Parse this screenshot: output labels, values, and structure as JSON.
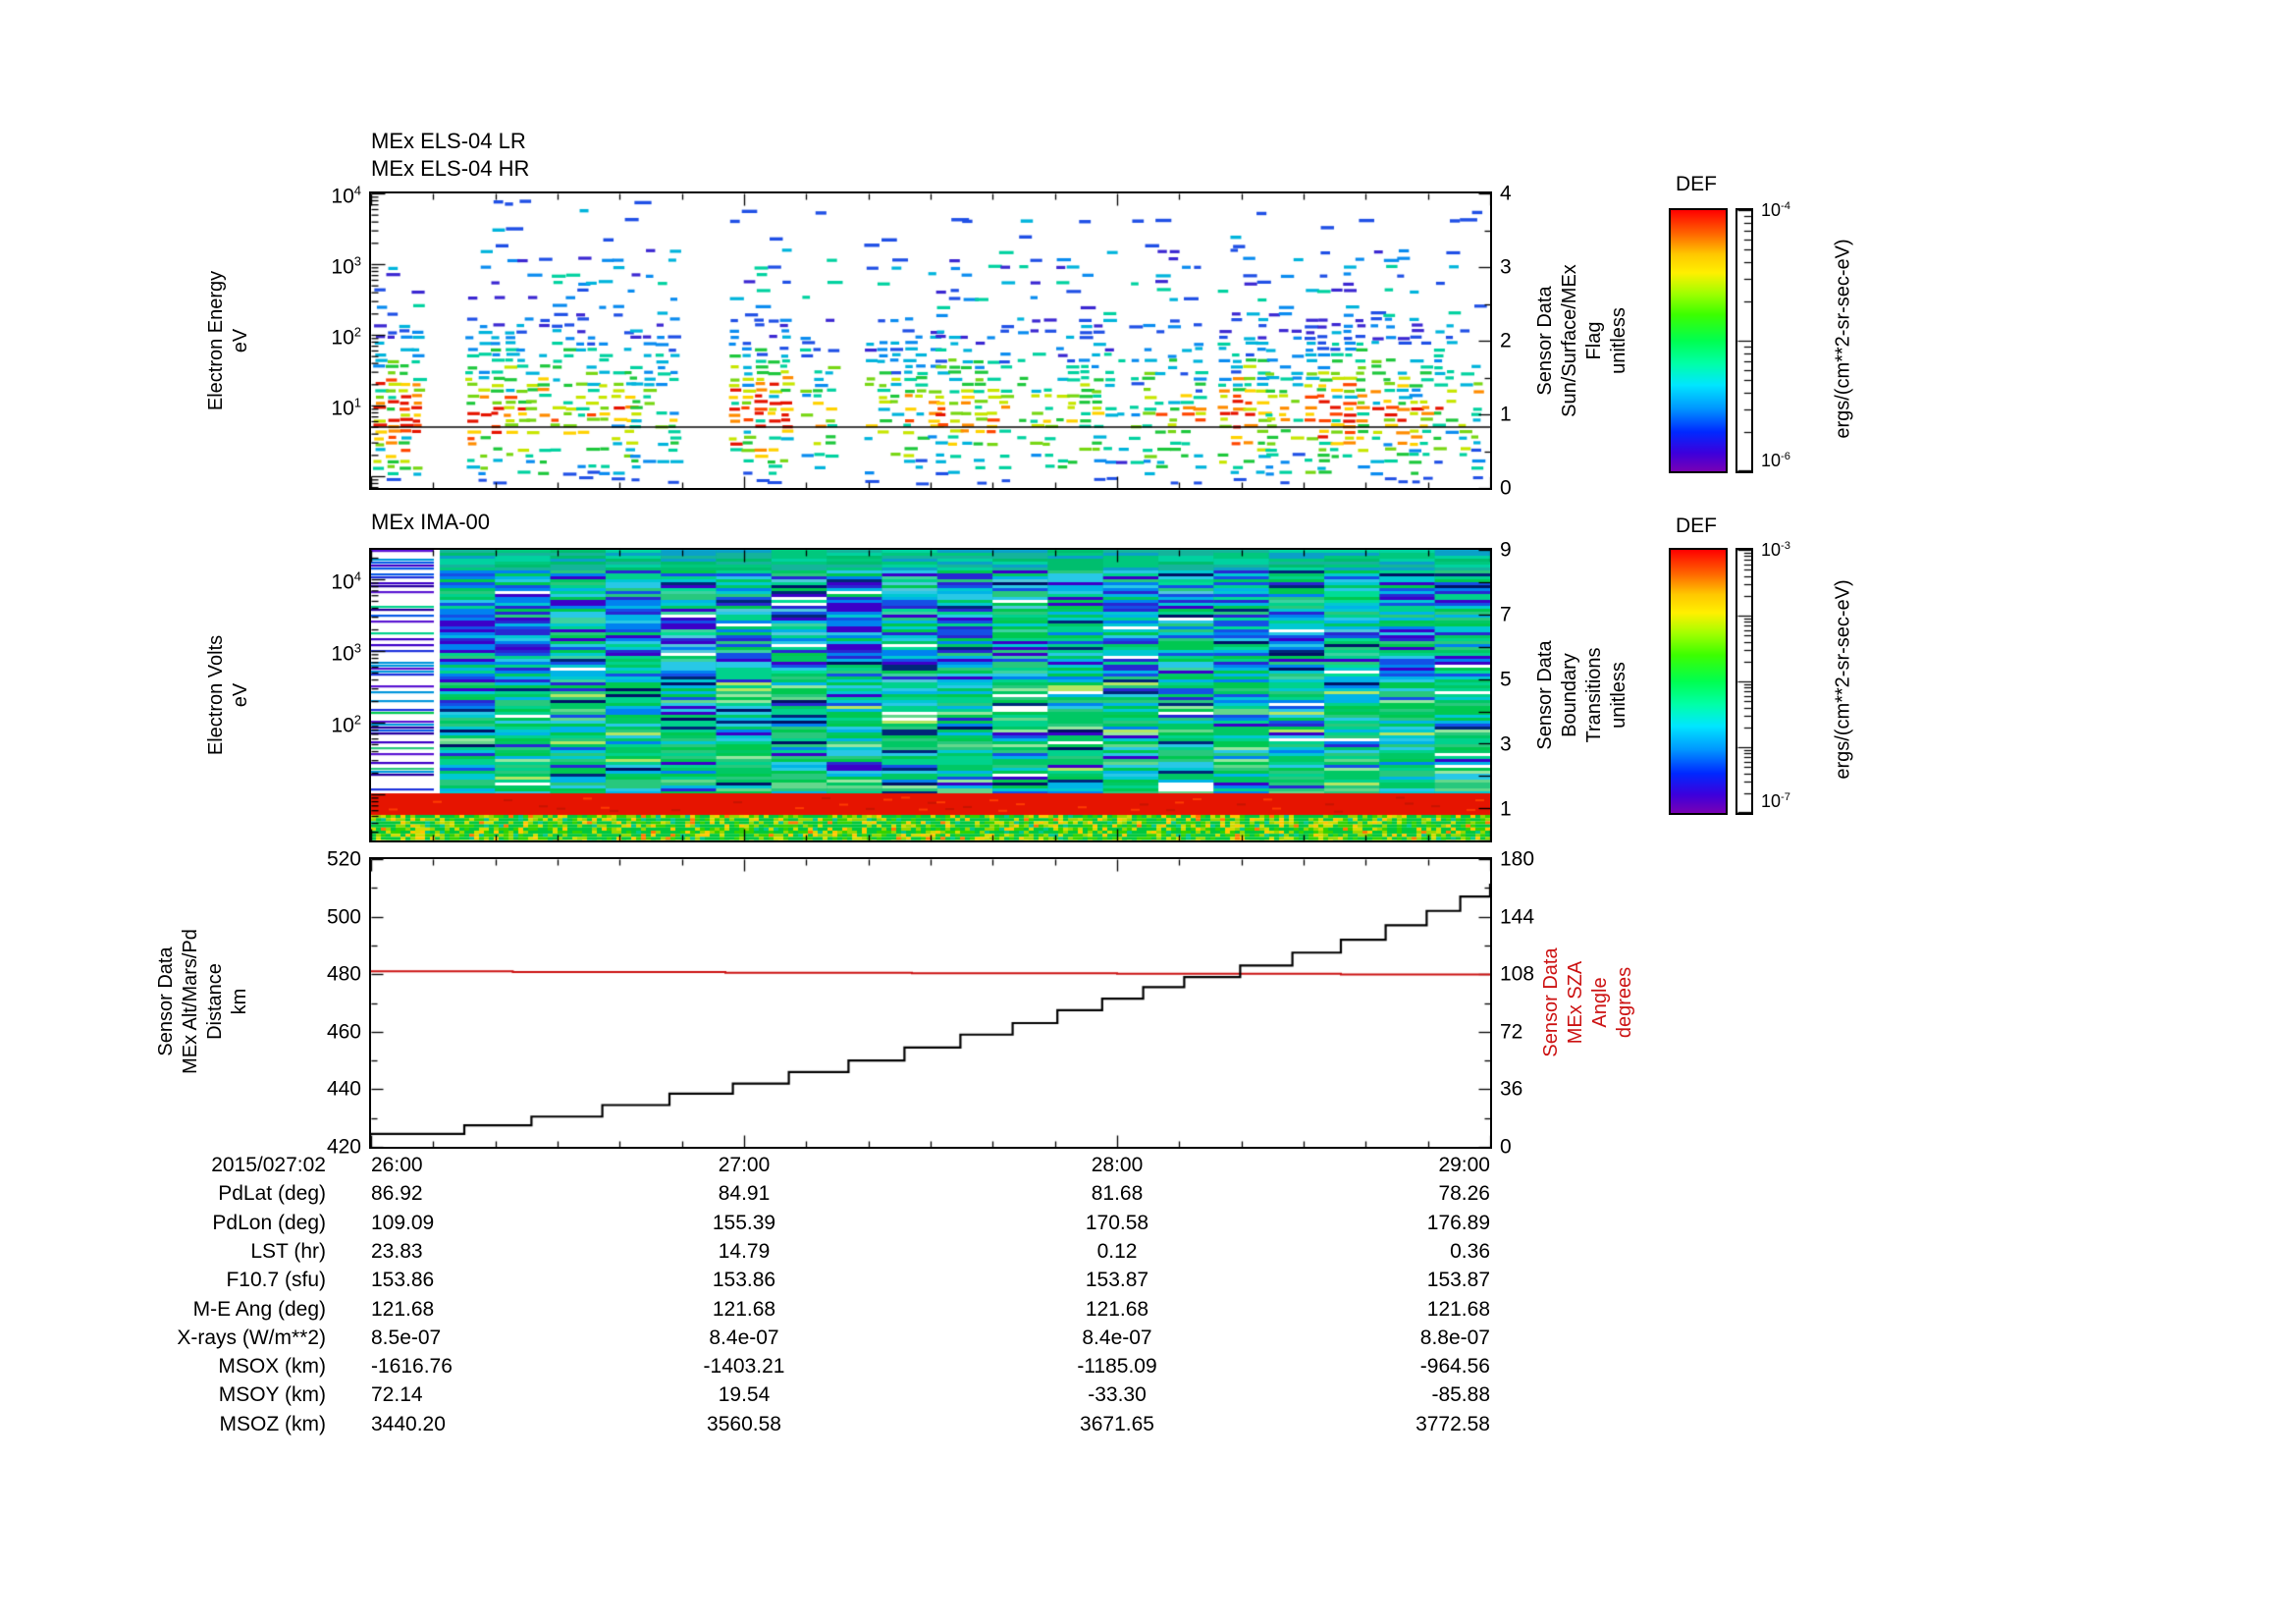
{
  "meta": {
    "background": "#ffffff",
    "foreground": "#000000",
    "accent_red": "#cc1111"
  },
  "els_panel": {
    "titles": [
      "MEx ELS-04 LR",
      "MEx ELS-04 HR"
    ],
    "y_left_title": [
      "Electron Energy",
      "eV"
    ],
    "y_left_ticks": [
      "10^4",
      "10^3",
      "10^2",
      "10^1"
    ],
    "y_right_title": [
      "Sensor Data",
      "Sun/Surface/MEx",
      "Flag",
      "unitless"
    ],
    "y_right_ticks": [
      "4",
      "3",
      "2",
      "1",
      "0"
    ]
  },
  "ima_panel": {
    "title": "MEx IMA-00",
    "y_left_title": [
      "Electron Volts",
      "eV"
    ],
    "y_left_ticks": [
      "10^4",
      "10^3",
      "10^2"
    ],
    "y_right_title": [
      "Sensor Data",
      "Boundary",
      "Transitions",
      "unitless"
    ],
    "y_right_ticks": [
      "9",
      "7",
      "5",
      "3",
      "1"
    ]
  },
  "line_panel": {
    "y_left_title": [
      "Sensor Data",
      "MEx Alt/Mars/Pd",
      "Distance",
      "km"
    ],
    "y_left_ticks": [
      "520",
      "500",
      "480",
      "460",
      "440",
      "420"
    ],
    "y_right_title": [
      "Sensor Data",
      "MEx SZA",
      "Angle",
      "degrees"
    ],
    "y_right_ticks": [
      "180",
      "144",
      "108",
      "72",
      "36",
      "0"
    ]
  },
  "x_axis": {
    "date": "2015/027:02",
    "ticks": [
      "26:00",
      "27:00",
      "28:00",
      "29:00"
    ]
  },
  "colorbars": [
    {
      "title": "DEF",
      "scale_top": "10^-4",
      "scale_bottom": "10^-6",
      "units": "ergs/(cm**2-sr-sec-eV)",
      "decades": 2
    },
    {
      "title": "DEF",
      "scale_top": "10^-3",
      "scale_bottom": "10^-7",
      "units": "ergs/(cm**2-sr-sec-eV)",
      "decades": 4
    }
  ],
  "table": {
    "rows": [
      {
        "label": "PdLat (deg)",
        "values": [
          "86.92",
          "84.91",
          "81.68",
          "78.26"
        ]
      },
      {
        "label": "PdLon (deg)",
        "values": [
          "109.09",
          "155.39",
          "170.58",
          "176.89"
        ]
      },
      {
        "label": "LST (hr)",
        "values": [
          "23.83",
          "14.79",
          "0.12",
          "0.36"
        ]
      },
      {
        "label": "F10.7 (sfu)",
        "values": [
          "153.86",
          "153.86",
          "153.87",
          "153.87"
        ]
      },
      {
        "label": "M-E Ang (deg)",
        "values": [
          "121.68",
          "121.68",
          "121.68",
          "121.68"
        ]
      },
      {
        "label": "X-rays (W/m**2)",
        "values": [
          "8.5e-07",
          "8.4e-07",
          "8.4e-07",
          "8.8e-07"
        ]
      },
      {
        "label": "MSOX (km)",
        "values": [
          "-1616.76",
          "-1403.21",
          "-1185.09",
          "-964.56"
        ]
      },
      {
        "label": "MSOY (km)",
        "values": [
          "72.14",
          "19.54",
          "-33.30",
          "-85.88"
        ]
      },
      {
        "label": "MSOZ (km)",
        "values": [
          "3440.20",
          "3560.58",
          "3671.65",
          "3772.58"
        ]
      }
    ]
  },
  "chart_data": [
    {
      "type": "heatmap",
      "title": "MEx ELS-04 LR / MEx ELS-04 HR electron energy spectrogram",
      "x_ticks": [
        "26:00",
        "27:00",
        "28:00",
        "29:00"
      ],
      "x_range": [
        "2015/027 26:00",
        "2015/027 29:00"
      ],
      "ylabel": "Electron Energy (eV)",
      "y_scale": "log",
      "y_ticks": [
        10,
        100,
        1000,
        10000
      ],
      "right_axis": {
        "label": "Sensor Data Sun/Surface/MEx Flag (unitless)",
        "range": [
          0,
          4
        ],
        "flag_line_value": 0.8
      },
      "colorbar": {
        "title": "DEF",
        "units": "ergs/(cm**2-sr-sec-eV)",
        "max": "1e-4",
        "min": "1e-6"
      },
      "description": "Sparse dashed differential energy flux in vertical clusters with data gaps; strongest (yellow/orange/red) flux between ~5 and ~50 eV; scattered blue dashes up to ~5000 eV; a horizontal black flag line near flag=0.8 spans the panel."
    },
    {
      "type": "heatmap",
      "title": "MEx IMA-00 ion spectrogram",
      "x_ticks": [
        "26:00",
        "27:00",
        "28:00",
        "29:00"
      ],
      "x_range": [
        "2015/027 26:00",
        "2015/027 29:00"
      ],
      "ylabel": "Electron Volts (eV)",
      "y_scale": "log",
      "y_ticks": [
        100,
        1000,
        10000
      ],
      "right_axis": {
        "label": "Sensor Data Boundary Transitions (unitless)",
        "range": [
          0,
          9
        ]
      },
      "colorbar": {
        "title": "DEF",
        "units": "ergs/(cm**2-sr-sec-eV)",
        "max": "1e-3",
        "min": "1e-7"
      },
      "description": "Dense blue/green/cyan flux at all energies in ~8-min columns; first ~10 min mostly data gap (white with sparse blue/purple rows); solid red high-flux band near the lowest energies; green band with yellow flecks below it; flux becomes greener (higher) after ~26:30."
    },
    {
      "type": "line",
      "x_unit": "hours of 2015/027 (26:00-29:00)",
      "x_ticks": [
        26,
        27,
        28,
        29
      ],
      "ylim_left": [
        420,
        520
      ],
      "ylim_right": [
        0,
        180
      ],
      "series": [
        {
          "name": "MEx Alt/Mars/Pd Distance",
          "units": "km",
          "axis": "left",
          "color": "#000000",
          "style": "step",
          "points": [
            [
              26.0,
              424.5
            ],
            [
              26.25,
              427.5
            ],
            [
              26.43,
              430.5
            ],
            [
              26.62,
              434.5
            ],
            [
              26.8,
              438.5
            ],
            [
              26.97,
              442.0
            ],
            [
              27.12,
              446.0
            ],
            [
              27.28,
              450.0
            ],
            [
              27.43,
              454.5
            ],
            [
              27.58,
              459.0
            ],
            [
              27.72,
              463.0
            ],
            [
              27.84,
              467.5
            ],
            [
              27.96,
              471.5
            ],
            [
              28.07,
              475.5
            ],
            [
              28.18,
              479.0
            ],
            [
              28.33,
              483.0
            ],
            [
              28.47,
              487.5
            ],
            [
              28.6,
              492.0
            ],
            [
              28.72,
              497.0
            ],
            [
              28.83,
              502.0
            ],
            [
              28.92,
              507.0
            ],
            [
              29.0,
              511.5
            ]
          ]
        },
        {
          "name": "MEx SZA Angle",
          "units": "degrees",
          "axis": "right",
          "color": "#cc1111",
          "style": "step",
          "points": [
            [
              26.0,
              109.8
            ],
            [
              26.38,
              109.3
            ],
            [
              26.95,
              108.9
            ],
            [
              27.45,
              108.6
            ],
            [
              28.0,
              108.2
            ],
            [
              28.6,
              107.8
            ],
            [
              29.0,
              107.6
            ]
          ]
        }
      ]
    }
  ]
}
